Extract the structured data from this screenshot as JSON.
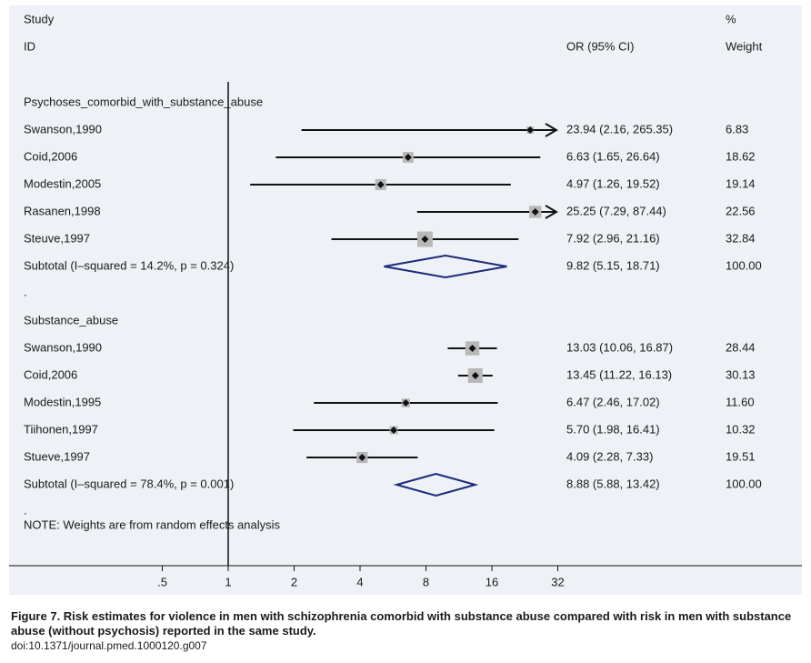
{
  "chart_data": {
    "type": "forest",
    "header": {
      "study": "Study",
      "id": "ID",
      "or_ci": "OR (95% CI)",
      "pct": "%",
      "weight": "Weight"
    },
    "x_axis": {
      "scale": "log2",
      "ticks": [
        ".5",
        "1",
        "2",
        "4",
        "8",
        "16",
        "32"
      ],
      "tick_values": [
        0.5,
        1,
        2,
        4,
        8,
        16,
        32
      ],
      "reference_line": 1
    },
    "groups": [
      {
        "label": "Psychoses_comorbid_with_substance_abuse",
        "studies": [
          {
            "name": "Swanson,1990",
            "or": 23.94,
            "lo": 2.16,
            "hi": 265.35,
            "ci_text": "23.94 (2.16, 265.35)",
            "weight": "6.83",
            "arrow_right": true
          },
          {
            "name": "Coid,2006",
            "or": 6.63,
            "lo": 1.65,
            "hi": 26.64,
            "ci_text": "6.63 (1.65, 26.64)",
            "weight": "18.62"
          },
          {
            "name": "Modestin,2005",
            "or": 4.97,
            "lo": 1.26,
            "hi": 19.52,
            "ci_text": "4.97 (1.26, 19.52)",
            "weight": "19.14"
          },
          {
            "name": "Rasanen,1998",
            "or": 25.25,
            "lo": 7.29,
            "hi": 87.44,
            "ci_text": "25.25 (7.29, 87.44)",
            "weight": "22.56",
            "arrow_right": true
          },
          {
            "name": "Steuve,1997",
            "or": 7.92,
            "lo": 2.96,
            "hi": 21.16,
            "ci_text": "7.92 (2.96, 21.16)",
            "weight": "32.84"
          }
        ],
        "subtotal": {
          "label": "Subtotal  (I–squared = 14.2%, p = 0.324)",
          "or": 9.82,
          "lo": 5.15,
          "hi": 18.71,
          "ci_text": "9.82 (5.15, 18.71)",
          "weight": "100.00"
        }
      },
      {
        "label": "Substance_abuse",
        "studies": [
          {
            "name": "Swanson,1990",
            "or": 13.03,
            "lo": 10.06,
            "hi": 16.87,
            "ci_text": "13.03 (10.06, 16.87)",
            "weight": "28.44"
          },
          {
            "name": "Coid,2006",
            "or": 13.45,
            "lo": 11.22,
            "hi": 16.13,
            "ci_text": "13.45 (11.22, 16.13)",
            "weight": "30.13"
          },
          {
            "name": "Modestin,1995",
            "or": 6.47,
            "lo": 2.46,
            "hi": 17.02,
            "ci_text": "6.47 (2.46, 17.02)",
            "weight": "11.60"
          },
          {
            "name": "Tiihonen,1997",
            "or": 5.7,
            "lo": 1.98,
            "hi": 16.41,
            "ci_text": "5.70 (1.98, 16.41)",
            "weight": "10.32"
          },
          {
            "name": "Stueve,1997",
            "or": 4.09,
            "lo": 2.28,
            "hi": 7.33,
            "ci_text": "4.09 (2.28, 7.33)",
            "weight": "19.51"
          }
        ],
        "subtotal": {
          "label": "Subtotal  (I–squared = 78.4%, p = 0.001)",
          "or": 8.88,
          "lo": 5.88,
          "hi": 13.42,
          "ci_text": "8.88 (5.88, 13.42)",
          "weight": "100.00"
        }
      }
    ],
    "separator": ".",
    "note": "NOTE: Weights are from random effects analysis",
    "colors": {
      "box": "#b8b8b8",
      "line": "#111111",
      "diamond": "#1a2a7a",
      "panel": "#eef1f6"
    }
  },
  "caption": {
    "title": "Figure 7. Risk estimates for violence in men with schizophrenia comorbid with substance abuse compared with risk in men with substance abuse (without psychosis) reported in the same study.",
    "doi": "doi:10.1371/journal.pmed.1000120.g007"
  }
}
